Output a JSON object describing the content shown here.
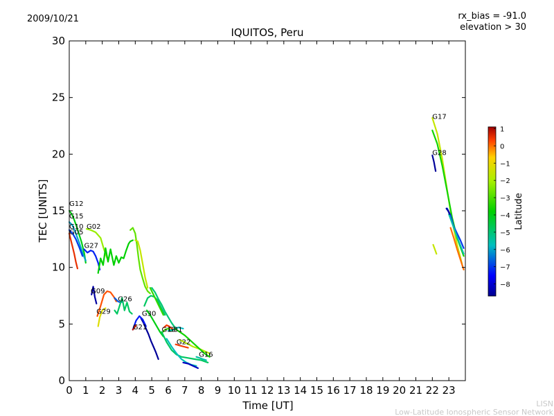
{
  "header": {
    "date": "2009/10/21",
    "rx_bias": "rx_bias = -91.0",
    "elevation": "elevation > 30"
  },
  "watermark": {
    "line1": "LISN",
    "line2": "Low-Latitude Ionospheric Sensor Network"
  },
  "colorbar": {
    "label": "Latitude",
    "ticks": [
      "1",
      "0",
      "−1",
      "−2",
      "−3",
      "−4",
      "−5",
      "−6",
      "−7",
      "−8"
    ],
    "tick_values": [
      1,
      0,
      -1,
      -2,
      -3,
      -4,
      -5,
      -6,
      -7,
      -8
    ],
    "range": [
      -8.7,
      1.1
    ]
  },
  "chart_data": {
    "type": "scatter",
    "title": "IQUITOS, Peru",
    "xlabel": "Time [UT]",
    "ylabel": "TEC [UNITS]",
    "xlim": [
      0,
      24
    ],
    "ylim": [
      0,
      30
    ],
    "xticks": [
      0,
      1,
      2,
      3,
      4,
      5,
      6,
      7,
      8,
      9,
      10,
      11,
      12,
      13,
      14,
      15,
      16,
      17,
      18,
      19,
      20,
      21,
      22,
      23
    ],
    "yticks": [
      0,
      5,
      10,
      15,
      20,
      25,
      30
    ],
    "series": [
      {
        "name": "G12",
        "label": "G12",
        "label_at": [
          0.0,
          15.3
        ],
        "segments": [
          {
            "lat": -4.0,
            "x": [
              0.0,
              0.15,
              0.3,
              0.45,
              0.6,
              0.75,
              0.9,
              1.0
            ],
            "y": [
              15.0,
              14.7,
              14.2,
              13.6,
              12.9,
              12.2,
              11.3,
              10.4
            ]
          }
        ]
      },
      {
        "name": "G15",
        "label": "G15",
        "label_at": [
          0.0,
          14.2
        ],
        "segments": [
          {
            "lat": -6.0,
            "x": [
              0.0,
              0.2,
              0.4,
              0.6,
              0.8,
              1.0
            ],
            "y": [
              14.0,
              13.7,
              13.0,
              12.2,
              11.3,
              10.6
            ]
          }
        ]
      },
      {
        "name": "G10",
        "label": "G10",
        "label_at": [
          0.0,
          13.3
        ],
        "segments": [
          {
            "lat": -7.0,
            "x": [
              0.0,
              0.2,
              0.4,
              0.6,
              0.8
            ],
            "y": [
              13.3,
              13.0,
              12.5,
              11.8,
              11.0
            ]
          }
        ]
      },
      {
        "name": "G05",
        "label": "G05",
        "label_at": [
          0.0,
          12.8
        ],
        "segments": [
          {
            "lat": 0.5,
            "x": [
              0.0,
              0.1,
              0.2,
              0.3,
              0.4,
              0.5
            ],
            "y": [
              13.0,
              12.4,
              11.8,
              11.2,
              10.5,
              9.9
            ]
          }
        ]
      },
      {
        "name": "G02",
        "label": "G02",
        "label_at": [
          1.05,
          13.3
        ],
        "segments": [
          {
            "lat": -2.2,
            "x": [
              1.05,
              1.3,
              1.6,
              1.9,
              2.1,
              2.3
            ],
            "y": [
              13.4,
              13.3,
              13.1,
              12.6,
              11.6,
              10.8
            ]
          }
        ]
      },
      {
        "name": "G27",
        "label": "G27",
        "label_at": [
          0.9,
          11.6
        ],
        "segments": [
          {
            "lat": -7.2,
            "x": [
              0.9,
              1.1,
              1.3,
              1.45,
              1.6,
              1.75,
              1.85
            ],
            "y": [
              11.6,
              11.3,
              11.5,
              11.4,
              11.0,
              10.4,
              9.8
            ]
          }
        ]
      },
      {
        "name": "G09",
        "label": "G09",
        "label_at": [
          1.3,
          7.6
        ],
        "segments": [
          {
            "lat": -8.5,
            "x": [
              1.35,
              1.45,
              1.55,
              1.65
            ],
            "y": [
              7.6,
              8.3,
              7.4,
              6.8
            ]
          }
        ]
      },
      {
        "name": "G29",
        "label": "G29",
        "label_at": [
          1.65,
          5.8
        ],
        "segments": [
          {
            "lat": -1.2,
            "x": [
              1.75,
              1.85,
              2.0,
              2.2
            ],
            "y": [
              4.8,
              5.6,
              6.2,
              6.4
            ]
          },
          {
            "lat": 0.2,
            "x": [
              1.7,
              1.9,
              2.1,
              2.3,
              2.5,
              2.7,
              2.85
            ],
            "y": [
              5.7,
              6.6,
              7.6,
              7.9,
              7.8,
              7.4,
              7.0
            ]
          }
        ]
      },
      {
        "name": "G26",
        "label": "G26",
        "label_at": [
          2.95,
          6.9
        ],
        "segments": [
          {
            "lat": -6.7,
            "x": [
              2.75,
              2.95,
              3.1,
              3.25
            ],
            "y": [
              7.3,
              7.0,
              6.9,
              7.0
            ]
          },
          {
            "lat": -3.8,
            "x": [
              1.75,
              1.9,
              2.05,
              2.2,
              2.35,
              2.5,
              2.7,
              2.85,
              3.0,
              3.15,
              3.3,
              3.45,
              3.6,
              3.7,
              3.85
            ],
            "y": [
              9.5,
              10.8,
              10.2,
              11.7,
              10.5,
              11.6,
              10.2,
              11.0,
              10.4,
              10.9,
              10.8,
              11.5,
              12.1,
              12.3,
              12.4
            ]
          },
          {
            "lat": -4.8,
            "x": [
              2.75,
              2.9,
              3.05,
              3.2,
              3.35,
              3.5,
              3.65,
              3.8
            ],
            "y": [
              6.2,
              5.9,
              6.6,
              7.3,
              6.2,
              6.9,
              6.1,
              5.9
            ]
          }
        ]
      },
      {
        "name": "G30",
        "label": "G30",
        "label_at": [
          4.4,
          5.6
        ],
        "segments": [
          {
            "lat": -8.6,
            "x": [
              4.35,
              4.5,
              4.65,
              4.8,
              4.95,
              5.1,
              5.25,
              5.4
            ],
            "y": [
              5.5,
              5.1,
              4.6,
              4.1,
              3.5,
              3.0,
              2.5,
              1.9
            ]
          },
          {
            "lat": -4.8,
            "x": [
              4.55,
              4.75,
              4.95,
              5.15,
              5.35,
              5.55,
              5.8
            ],
            "y": [
              6.6,
              7.3,
              7.5,
              7.4,
              7.1,
              6.5,
              5.8
            ]
          }
        ]
      },
      {
        "name": "G21",
        "label": "G21",
        "label_at": [
          3.85,
          4.4
        ],
        "segments": [
          {
            "lat": -7.3,
            "x": [
              3.85,
              4.05,
              4.25,
              4.45,
              4.65
            ],
            "y": [
              4.5,
              5.3,
              5.7,
              5.4,
              4.8
            ]
          },
          {
            "lat": 0.8,
            "x": [
              3.85,
              3.95,
              4.05
            ],
            "y": [
              4.5,
              4.7,
              4.9
            ]
          }
        ]
      },
      {
        "name": "G13",
        "label": "G13",
        "label_at": [
          5.6,
          4.2
        ],
        "segments": [
          {
            "lat": -3.2,
            "x": [
              5.6,
              5.8,
              6.0,
              6.2
            ],
            "y": [
              4.2,
              4.5,
              4.6,
              4.4
            ]
          }
        ]
      },
      {
        "name": "G31",
        "label": "G31",
        "label_at": [
          6.0,
          4.2
        ],
        "segments": [
          {
            "lat": 0.4,
            "x": [
              5.75,
              5.9,
              6.05,
              6.2,
              6.35
            ],
            "y": [
              4.7,
              4.9,
              4.8,
              4.6,
              4.5
            ]
          },
          {
            "lat": -5.8,
            "x": [
              6.0,
              6.3,
              6.6,
              6.9
            ],
            "y": [
              4.4,
              4.5,
              4.7,
              4.6
            ]
          }
        ]
      },
      {
        "name": "G22",
        "label": "G22",
        "label_at": [
          6.5,
          3.1
        ],
        "segments": [
          {
            "lat": 0.4,
            "x": [
              6.45,
              6.7,
              6.95,
              7.2
            ],
            "y": [
              3.2,
              3.1,
              3.0,
              2.9
            ]
          },
          {
            "lat": -1.8,
            "x": [
              6.7,
              7.1,
              7.5,
              7.9,
              8.2,
              8.5
            ],
            "y": [
              3.6,
              3.3,
              3.0,
              2.8,
              2.6,
              2.4
            ]
          }
        ]
      },
      {
        "name": "G16",
        "label": "G16",
        "label_at": [
          7.85,
          2.0
        ],
        "segments": [
          {
            "lat": -5.5,
            "x": [
              7.7,
              7.9,
              8.1,
              8.3
            ],
            "y": [
              2.1,
              2.0,
              1.9,
              1.8
            ]
          }
        ]
      },
      {
        "name": "S-a",
        "label": "",
        "segments": [
          {
            "lat": -2.8,
            "x": [
              3.7,
              3.85,
              4.0,
              4.1,
              4.2,
              4.3,
              4.45,
              4.6,
              4.75,
              4.9
            ],
            "y": [
              13.3,
              13.5,
              13.0,
              12.0,
              10.8,
              9.8,
              9.0,
              8.3,
              7.9,
              7.7
            ]
          },
          {
            "lat": -1.6,
            "x": [
              4.0,
              4.15,
              4.3,
              4.45,
              4.6,
              4.75
            ],
            "y": [
              12.4,
              12.3,
              11.5,
              10.3,
              9.1,
              8.2
            ]
          },
          {
            "lat": -5.0,
            "x": [
              5.0,
              5.2,
              5.4,
              5.6,
              5.8,
              6.0,
              6.2,
              6.4
            ],
            "y": [
              8.2,
              7.8,
              7.2,
              6.7,
              6.1,
              5.6,
              5.1,
              4.7
            ]
          },
          {
            "lat": -3.3,
            "x": [
              4.9,
              5.1,
              5.3,
              5.5,
              5.7
            ],
            "y": [
              8.2,
              7.6,
              7.0,
              6.4,
              5.8
            ]
          },
          {
            "lat": -4.0,
            "x": [
              4.7,
              4.9,
              5.1,
              5.3,
              5.5,
              5.7
            ],
            "y": [
              6.2,
              5.8,
              5.3,
              4.8,
              4.3,
              3.9
            ]
          }
        ]
      },
      {
        "name": "S-b",
        "label": "",
        "segments": [
          {
            "lat": -4.8,
            "x": [
              5.6,
              5.9,
              6.2,
              6.5,
              6.8,
              7.2,
              7.6,
              8.0,
              8.4
            ],
            "y": [
              4.3,
              3.4,
              2.7,
              2.3,
              2.1,
              2.0,
              1.9,
              1.8,
              1.6
            ]
          },
          {
            "lat": -5.7,
            "x": [
              5.9,
              6.2,
              6.5,
              6.8,
              7.1,
              7.4,
              7.7
            ],
            "y": [
              3.7,
              3.0,
              2.4,
              1.9,
              1.6,
              1.4,
              1.3
            ]
          },
          {
            "lat": -8.2,
            "x": [
              6.9,
              7.2,
              7.5,
              7.8
            ],
            "y": [
              1.6,
              1.5,
              1.3,
              1.1
            ]
          },
          {
            "lat": -3.6,
            "x": [
              6.4,
              6.7,
              7.0,
              7.3,
              7.6,
              7.9,
              8.2,
              8.5
            ],
            "y": [
              4.6,
              4.3,
              4.0,
              3.6,
              3.2,
              2.8,
              2.4,
              2.1
            ]
          }
        ]
      },
      {
        "name": "G17",
        "label": "G17",
        "label_at": [
          22.0,
          23.0
        ],
        "segments": [
          {
            "lat": -1.6,
            "x": [
              22.0,
              22.3,
              22.6,
              22.9,
              23.2,
              23.5,
              23.8
            ],
            "y": [
              23.2,
              21.8,
              19.6,
              16.8,
              14.1,
              12.0,
              10.3
            ]
          },
          {
            "lat": -3.6,
            "x": [
              22.0,
              22.3,
              22.6,
              22.9,
              23.2,
              23.5,
              23.9
            ],
            "y": [
              22.1,
              20.9,
              19.0,
              16.7,
              14.4,
              12.6,
              11.0
            ]
          },
          {
            "lat": -1.6,
            "x": [
              22.05,
              22.15,
              22.25
            ],
            "y": [
              12.0,
              11.6,
              11.2
            ]
          }
        ]
      },
      {
        "name": "G28",
        "label": "G28",
        "label_at": [
          22.0,
          19.8
        ],
        "segments": [
          {
            "lat": -8.6,
            "x": [
              22.0,
              22.1,
              22.2
            ],
            "y": [
              19.9,
              19.3,
              18.5
            ]
          },
          {
            "lat": -7.0,
            "x": [
              22.9,
              23.1,
              23.3,
              23.5,
              23.7,
              23.9
            ],
            "y": [
              15.2,
              14.6,
              13.6,
              13.0,
              12.4,
              11.7
            ]
          },
          {
            "lat": 0.0,
            "x": [
              23.1,
              23.3,
              23.5,
              23.7,
              23.9
            ],
            "y": [
              13.5,
              12.6,
              11.6,
              10.7,
              9.8
            ]
          },
          {
            "lat": -5.5,
            "x": [
              23.0,
              23.3,
              23.6,
              23.9
            ],
            "y": [
              14.7,
              13.5,
              12.3,
              11.2
            ]
          },
          {
            "lat": -8.5,
            "x": [
              22.85,
              22.95,
              23.05
            ],
            "y": [
              15.2,
              15.0,
              14.7
            ]
          }
        ]
      }
    ]
  }
}
